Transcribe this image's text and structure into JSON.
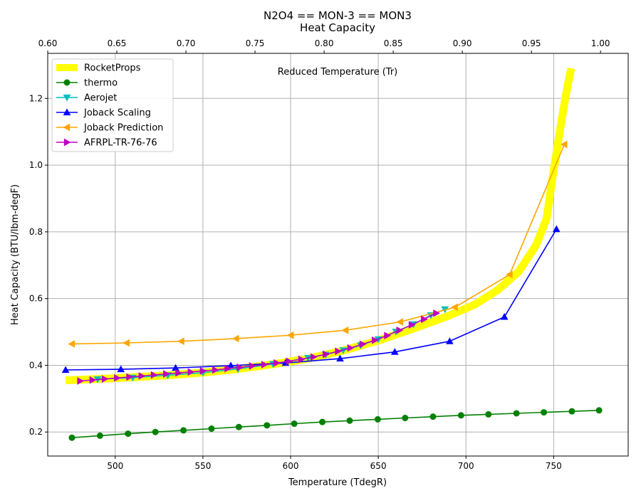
{
  "chart_data": {
    "type": "line",
    "title": "N2O4 == MON-3 == MON3",
    "subtitle": "Heat Capacity",
    "xlabel": "Temperature (TdegR)",
    "ylabel": "Heat Capacity (BTU/lbm-degF)",
    "x2label": "Reduced Temperature (Tr)",
    "xlim": [
      461.5,
      792.5
    ],
    "ylim": [
      0.128,
      1.335
    ],
    "x2lim": [
      0.6,
      1.02
    ],
    "xticks": [
      500,
      550,
      600,
      650,
      700,
      750
    ],
    "yticks": [
      0.2,
      0.4,
      0.6,
      0.8,
      1.0,
      1.2
    ],
    "x2ticks": [
      0.6,
      0.65,
      0.7,
      0.75,
      0.8,
      0.85,
      0.9,
      0.95,
      1.0
    ],
    "xtick_labels": [
      "500",
      "550",
      "600",
      "650",
      "700",
      "750"
    ],
    "ytick_labels": [
      "0.2",
      "0.4",
      "0.6",
      "0.8",
      "1.0",
      "1.2"
    ],
    "x2tick_labels": [
      "0.60",
      "0.65",
      "0.70",
      "0.75",
      "0.80",
      "0.85",
      "0.90",
      "0.95",
      "1.00"
    ],
    "grid": true,
    "legend_position": "top-left",
    "series": [
      {
        "name": "RocketProps",
        "color": "#ffff00",
        "marker": "none",
        "x": [
          471.7,
          490,
          510,
          530,
          550,
          570,
          590,
          610,
          630,
          650,
          670,
          690,
          705,
          718,
          730,
          740,
          746,
          749,
          752,
          755,
          758,
          760
        ],
        "y": [
          0.355,
          0.359,
          0.364,
          0.37,
          0.378,
          0.389,
          0.403,
          0.42,
          0.444,
          0.474,
          0.51,
          0.548,
          0.582,
          0.625,
          0.68,
          0.76,
          0.84,
          0.95,
          1.05,
          1.15,
          1.24,
          1.29
        ]
      },
      {
        "name": "thermo",
        "color": "#008000",
        "marker": "circle",
        "x": [
          475.3,
          491.3,
          507.3,
          522.9,
          538.9,
          554.9,
          570.5,
          586.5,
          602.1,
          618.1,
          633.7,
          649.7,
          665.3,
          681.2,
          697.2,
          712.8,
          728.8,
          744.4,
          760.4,
          775.9
        ],
        "y": [
          0.183,
          0.189,
          0.195,
          0.2,
          0.205,
          0.21,
          0.215,
          0.22,
          0.225,
          0.23,
          0.234,
          0.238,
          0.242,
          0.246,
          0.25,
          0.253,
          0.256,
          0.259,
          0.262,
          0.265
        ]
      },
      {
        "name": "Aerojet",
        "color": "#00bfbf",
        "marker": "triangle-down",
        "x": [
          490,
          510,
          530,
          550,
          570,
          590,
          610,
          620,
          630,
          640,
          650,
          660,
          670,
          680,
          688
        ],
        "y": [
          0.358,
          0.363,
          0.37,
          0.378,
          0.389,
          0.404,
          0.422,
          0.432,
          0.445,
          0.46,
          0.478,
          0.501,
          0.523,
          0.55,
          0.568
        ]
      },
      {
        "name": "Joback Scaling",
        "color": "#0000ff",
        "marker": "triangle-up",
        "x": [
          471.7,
          503.2,
          534.4,
          565.9,
          597.1,
          628.2,
          659.4,
          690.7,
          721.9,
          751.6
        ],
        "y": [
          0.386,
          0.388,
          0.392,
          0.399,
          0.407,
          0.42,
          0.44,
          0.472,
          0.545,
          0.808
        ]
      },
      {
        "name": "Joback Prediction",
        "color": "#ffa500",
        "marker": "triangle-left",
        "x": [
          475.3,
          506.5,
          537.7,
          568.9,
          600.1,
          631.3,
          662.5,
          693.7,
          724.9,
          756.1
        ],
        "y": [
          0.464,
          0.467,
          0.472,
          0.48,
          0.49,
          0.505,
          0.53,
          0.574,
          0.672,
          1.062
        ]
      },
      {
        "name": "AFRPL-TR-76-76",
        "color": "#bf00bf",
        "marker": "triangle-right",
        "x": [
          480,
          487,
          494,
          501,
          508,
          515,
          522,
          529,
          536,
          543,
          550,
          557,
          564,
          571,
          578,
          585,
          592,
          599,
          606,
          613,
          620,
          627,
          634,
          641,
          648,
          655,
          662,
          669,
          676,
          683
        ],
        "y": [
          0.353,
          0.356,
          0.359,
          0.362,
          0.365,
          0.368,
          0.371,
          0.374,
          0.377,
          0.38,
          0.383,
          0.386,
          0.39,
          0.394,
          0.398,
          0.402,
          0.407,
          0.412,
          0.418,
          0.425,
          0.433,
          0.442,
          0.452,
          0.463,
          0.475,
          0.489,
          0.505,
          0.521,
          0.538,
          0.556
        ]
      }
    ]
  }
}
